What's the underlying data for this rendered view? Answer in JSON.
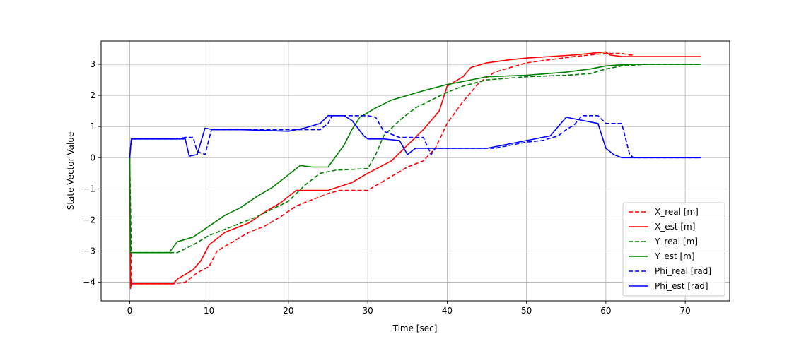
{
  "chart_data": {
    "type": "line",
    "xlabel": "Time [sec]",
    "ylabel": "State Vector Value",
    "xlim": [
      -3.6,
      75.6
    ],
    "ylim": [
      -4.6,
      3.75
    ],
    "xticks": [
      0,
      10,
      20,
      30,
      40,
      50,
      60,
      70
    ],
    "yticks": [
      -4,
      -3,
      -2,
      -1,
      0,
      1,
      2,
      3
    ],
    "grid": true,
    "legend_position": "lower-right",
    "series": [
      {
        "name": "X_real [m]",
        "color": "#ff0000",
        "dash": true,
        "points": [
          [
            0,
            0
          ],
          [
            0.2,
            -4.05
          ],
          [
            5.5,
            -4.05
          ],
          [
            7,
            -4.0
          ],
          [
            8.5,
            -3.7
          ],
          [
            10,
            -3.5
          ],
          [
            11,
            -3.0
          ],
          [
            13,
            -2.7
          ],
          [
            15,
            -2.4
          ],
          [
            17,
            -2.2
          ],
          [
            19,
            -1.9
          ],
          [
            21,
            -1.55
          ],
          [
            23,
            -1.35
          ],
          [
            25,
            -1.15
          ],
          [
            26.5,
            -1.05
          ],
          [
            30,
            -1.05
          ],
          [
            31,
            -0.9
          ],
          [
            33,
            -0.6
          ],
          [
            35,
            -0.3
          ],
          [
            37,
            -0.1
          ],
          [
            38.5,
            0.3
          ],
          [
            40,
            1.1
          ],
          [
            42,
            1.8
          ],
          [
            44,
            2.4
          ],
          [
            46,
            2.75
          ],
          [
            48,
            2.9
          ],
          [
            50,
            3.05
          ],
          [
            53,
            3.15
          ],
          [
            56,
            3.25
          ],
          [
            58,
            3.3
          ],
          [
            60,
            3.35
          ],
          [
            62,
            3.35
          ],
          [
            63,
            3.3
          ],
          [
            63.5,
            3.3
          ]
        ]
      },
      {
        "name": "X_est [m]",
        "color": "#ff0000",
        "dash": false,
        "points": [
          [
            0,
            0
          ],
          [
            0.1,
            -4.2
          ],
          [
            0.2,
            -4.05
          ],
          [
            5.5,
            -4.05
          ],
          [
            6,
            -3.9
          ],
          [
            8,
            -3.6
          ],
          [
            9,
            -3.3
          ],
          [
            10,
            -2.8
          ],
          [
            12,
            -2.4
          ],
          [
            15,
            -2.1
          ],
          [
            17,
            -1.75
          ],
          [
            19,
            -1.45
          ],
          [
            21,
            -1.05
          ],
          [
            25,
            -1.05
          ],
          [
            28,
            -0.8
          ],
          [
            30,
            -0.5
          ],
          [
            33,
            -0.1
          ],
          [
            35,
            0.4
          ],
          [
            37,
            0.9
          ],
          [
            39,
            1.5
          ],
          [
            40,
            2.3
          ],
          [
            42,
            2.6
          ],
          [
            43,
            2.9
          ],
          [
            45,
            3.05
          ],
          [
            48,
            3.15
          ],
          [
            50,
            3.2
          ],
          [
            53,
            3.25
          ],
          [
            56,
            3.3
          ],
          [
            58,
            3.35
          ],
          [
            60,
            3.4
          ],
          [
            60.5,
            3.3
          ],
          [
            62,
            3.25
          ],
          [
            72,
            3.25
          ]
        ]
      },
      {
        "name": "Y_real [m]",
        "color": "#008000",
        "dash": true,
        "points": [
          [
            0,
            0
          ],
          [
            0.2,
            -3.05
          ],
          [
            6,
            -3.05
          ],
          [
            8,
            -2.8
          ],
          [
            10,
            -2.5
          ],
          [
            12,
            -2.3
          ],
          [
            14,
            -2.1
          ],
          [
            16,
            -1.9
          ],
          [
            18,
            -1.65
          ],
          [
            20,
            -1.4
          ],
          [
            22,
            -0.9
          ],
          [
            24,
            -0.5
          ],
          [
            26,
            -0.4
          ],
          [
            30,
            -0.35
          ],
          [
            31,
            0.1
          ],
          [
            32,
            0.7
          ],
          [
            34,
            1.2
          ],
          [
            36,
            1.6
          ],
          [
            38,
            1.85
          ],
          [
            40,
            2.1
          ],
          [
            42,
            2.3
          ],
          [
            45,
            2.5
          ],
          [
            50,
            2.6
          ],
          [
            55,
            2.65
          ],
          [
            58,
            2.7
          ],
          [
            60,
            2.85
          ],
          [
            62,
            2.95
          ],
          [
            65,
            3.0
          ],
          [
            72,
            3.0
          ]
        ]
      },
      {
        "name": "Y_est [m]",
        "color": "#008000",
        "dash": false,
        "points": [
          [
            0,
            0
          ],
          [
            0.1,
            -3.05
          ],
          [
            0.2,
            -3.05
          ],
          [
            5,
            -3.05
          ],
          [
            6,
            -2.7
          ],
          [
            8,
            -2.55
          ],
          [
            10,
            -2.2
          ],
          [
            12,
            -1.85
          ],
          [
            14,
            -1.6
          ],
          [
            16,
            -1.25
          ],
          [
            18,
            -0.95
          ],
          [
            20,
            -0.55
          ],
          [
            21.5,
            -0.25
          ],
          [
            23,
            -0.3
          ],
          [
            25,
            -0.3
          ],
          [
            27,
            0.4
          ],
          [
            28,
            0.9
          ],
          [
            29,
            1.3
          ],
          [
            31,
            1.6
          ],
          [
            33,
            1.85
          ],
          [
            35,
            2.0
          ],
          [
            37,
            2.15
          ],
          [
            40,
            2.35
          ],
          [
            43,
            2.5
          ],
          [
            45,
            2.6
          ],
          [
            50,
            2.65
          ],
          [
            55,
            2.75
          ],
          [
            58,
            2.85
          ],
          [
            60,
            2.95
          ],
          [
            63,
            3.0
          ],
          [
            72,
            3.0
          ]
        ]
      },
      {
        "name": "Phi_real [rad]",
        "color": "#0000ff",
        "dash": true,
        "points": [
          [
            0,
            0
          ],
          [
            0.2,
            0.6
          ],
          [
            6,
            0.6
          ],
          [
            7,
            0.65
          ],
          [
            8,
            0.65
          ],
          [
            8.5,
            0.2
          ],
          [
            9.5,
            0.1
          ],
          [
            10.3,
            0.9
          ],
          [
            11,
            0.9
          ],
          [
            20,
            0.9
          ],
          [
            24,
            0.9
          ],
          [
            25,
            1.1
          ],
          [
            25.5,
            1.35
          ],
          [
            30,
            1.35
          ],
          [
            31,
            1.3
          ],
          [
            32,
            0.85
          ],
          [
            34,
            0.65
          ],
          [
            37,
            0.65
          ],
          [
            38,
            0.1
          ],
          [
            38.5,
            0.3
          ],
          [
            45,
            0.3
          ],
          [
            46,
            0.3
          ],
          [
            48,
            0.4
          ],
          [
            50,
            0.5
          ],
          [
            52,
            0.55
          ],
          [
            54,
            0.7
          ],
          [
            55,
            0.9
          ],
          [
            56,
            1.05
          ],
          [
            57,
            1.35
          ],
          [
            59,
            1.35
          ],
          [
            60,
            1.1
          ],
          [
            62,
            1.1
          ],
          [
            63,
            0.1
          ],
          [
            63.5,
            0.0
          ],
          [
            72,
            0.0
          ]
        ]
      },
      {
        "name": "Phi_est [rad]",
        "color": "#0000ff",
        "dash": false,
        "points": [
          [
            0,
            0
          ],
          [
            0.2,
            0.6
          ],
          [
            6,
            0.6
          ],
          [
            7,
            0.6
          ],
          [
            7.5,
            0.05
          ],
          [
            8.5,
            0.1
          ],
          [
            9.5,
            0.95
          ],
          [
            10.5,
            0.9
          ],
          [
            14,
            0.9
          ],
          [
            20,
            0.85
          ],
          [
            22,
            0.95
          ],
          [
            24,
            1.1
          ],
          [
            25,
            1.35
          ],
          [
            27,
            1.35
          ],
          [
            28,
            1.2
          ],
          [
            29.5,
            0.7
          ],
          [
            30,
            0.6
          ],
          [
            32,
            0.6
          ],
          [
            34,
            0.55
          ],
          [
            35,
            0.1
          ],
          [
            36,
            0.3
          ],
          [
            45,
            0.3
          ],
          [
            47,
            0.4
          ],
          [
            50,
            0.55
          ],
          [
            53,
            0.7
          ],
          [
            55,
            1.3
          ],
          [
            57,
            1.2
          ],
          [
            59,
            1.1
          ],
          [
            60,
            0.3
          ],
          [
            61,
            0.1
          ],
          [
            62,
            0.0
          ],
          [
            72,
            0.0
          ]
        ]
      }
    ]
  }
}
